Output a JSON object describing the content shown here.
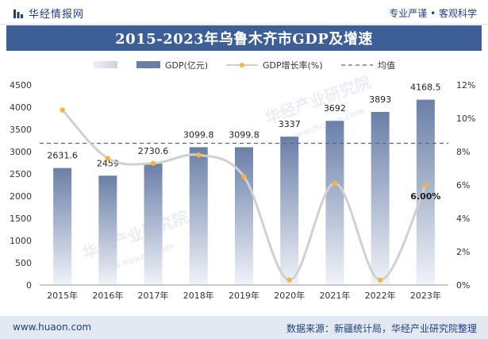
{
  "header": {
    "brand": "华经情报网",
    "slogan": "专业严谨 • 客观科学"
  },
  "footer": {
    "site": "www.huaon.com",
    "source": "数据来源：新疆统计局，华经产业研究院整理"
  },
  "watermark": {
    "text": "华经产业研究院",
    "url": "www.huaon.com"
  },
  "colors": {
    "title_bg": "#3d5f95",
    "bar_top": "#6a7fa8",
    "bar_bottom": "#f0f3f8",
    "line": "#d0d0d0",
    "dot": "#f2b63a",
    "avg_line": "#4a6e8a"
  },
  "chart_data": {
    "type": "bar",
    "title": "2015-2023年乌鲁木齐市GDP及增速",
    "categories": [
      "2015年",
      "2016年",
      "2017年",
      "2018年",
      "2019年",
      "2020年",
      "2021年",
      "2022年",
      "2023年"
    ],
    "legend": {
      "bar_label": "GDP(亿元)",
      "line_label": "GDP增长率(%)",
      "avg_label": "均值",
      "placement": "top"
    },
    "series": [
      {
        "name": "GDP(亿元)",
        "type": "bar",
        "axis": "left",
        "values": [
          2631.6,
          2459,
          2730.6,
          3099.8,
          3099.8,
          3337,
          3692,
          3893,
          4168.5
        ],
        "labels": [
          "2631.6",
          "2459",
          "2730.6",
          "3099.8",
          "3099.8",
          "3337",
          "3692",
          "3893",
          "4168.5"
        ]
      },
      {
        "name": "GDP增长率(%)",
        "type": "line",
        "axis": "right",
        "values": [
          10.5,
          7.6,
          7.3,
          7.8,
          6.5,
          0.3,
          6.1,
          0.3,
          6.0
        ],
        "highlight_label": "6.00%"
      }
    ],
    "average_line_value": 8.5,
    "y_left": {
      "min": 0,
      "max": 4500,
      "ticks": [
        "0",
        "500",
        "1000",
        "1500",
        "2000",
        "2500",
        "3000",
        "3500",
        "4000",
        "4500"
      ]
    },
    "y_right": {
      "min": 0,
      "max": 12,
      "ticks": [
        "0%",
        "2%",
        "4%",
        "6%",
        "8%",
        "10%",
        "12%"
      ]
    },
    "grid": false
  }
}
